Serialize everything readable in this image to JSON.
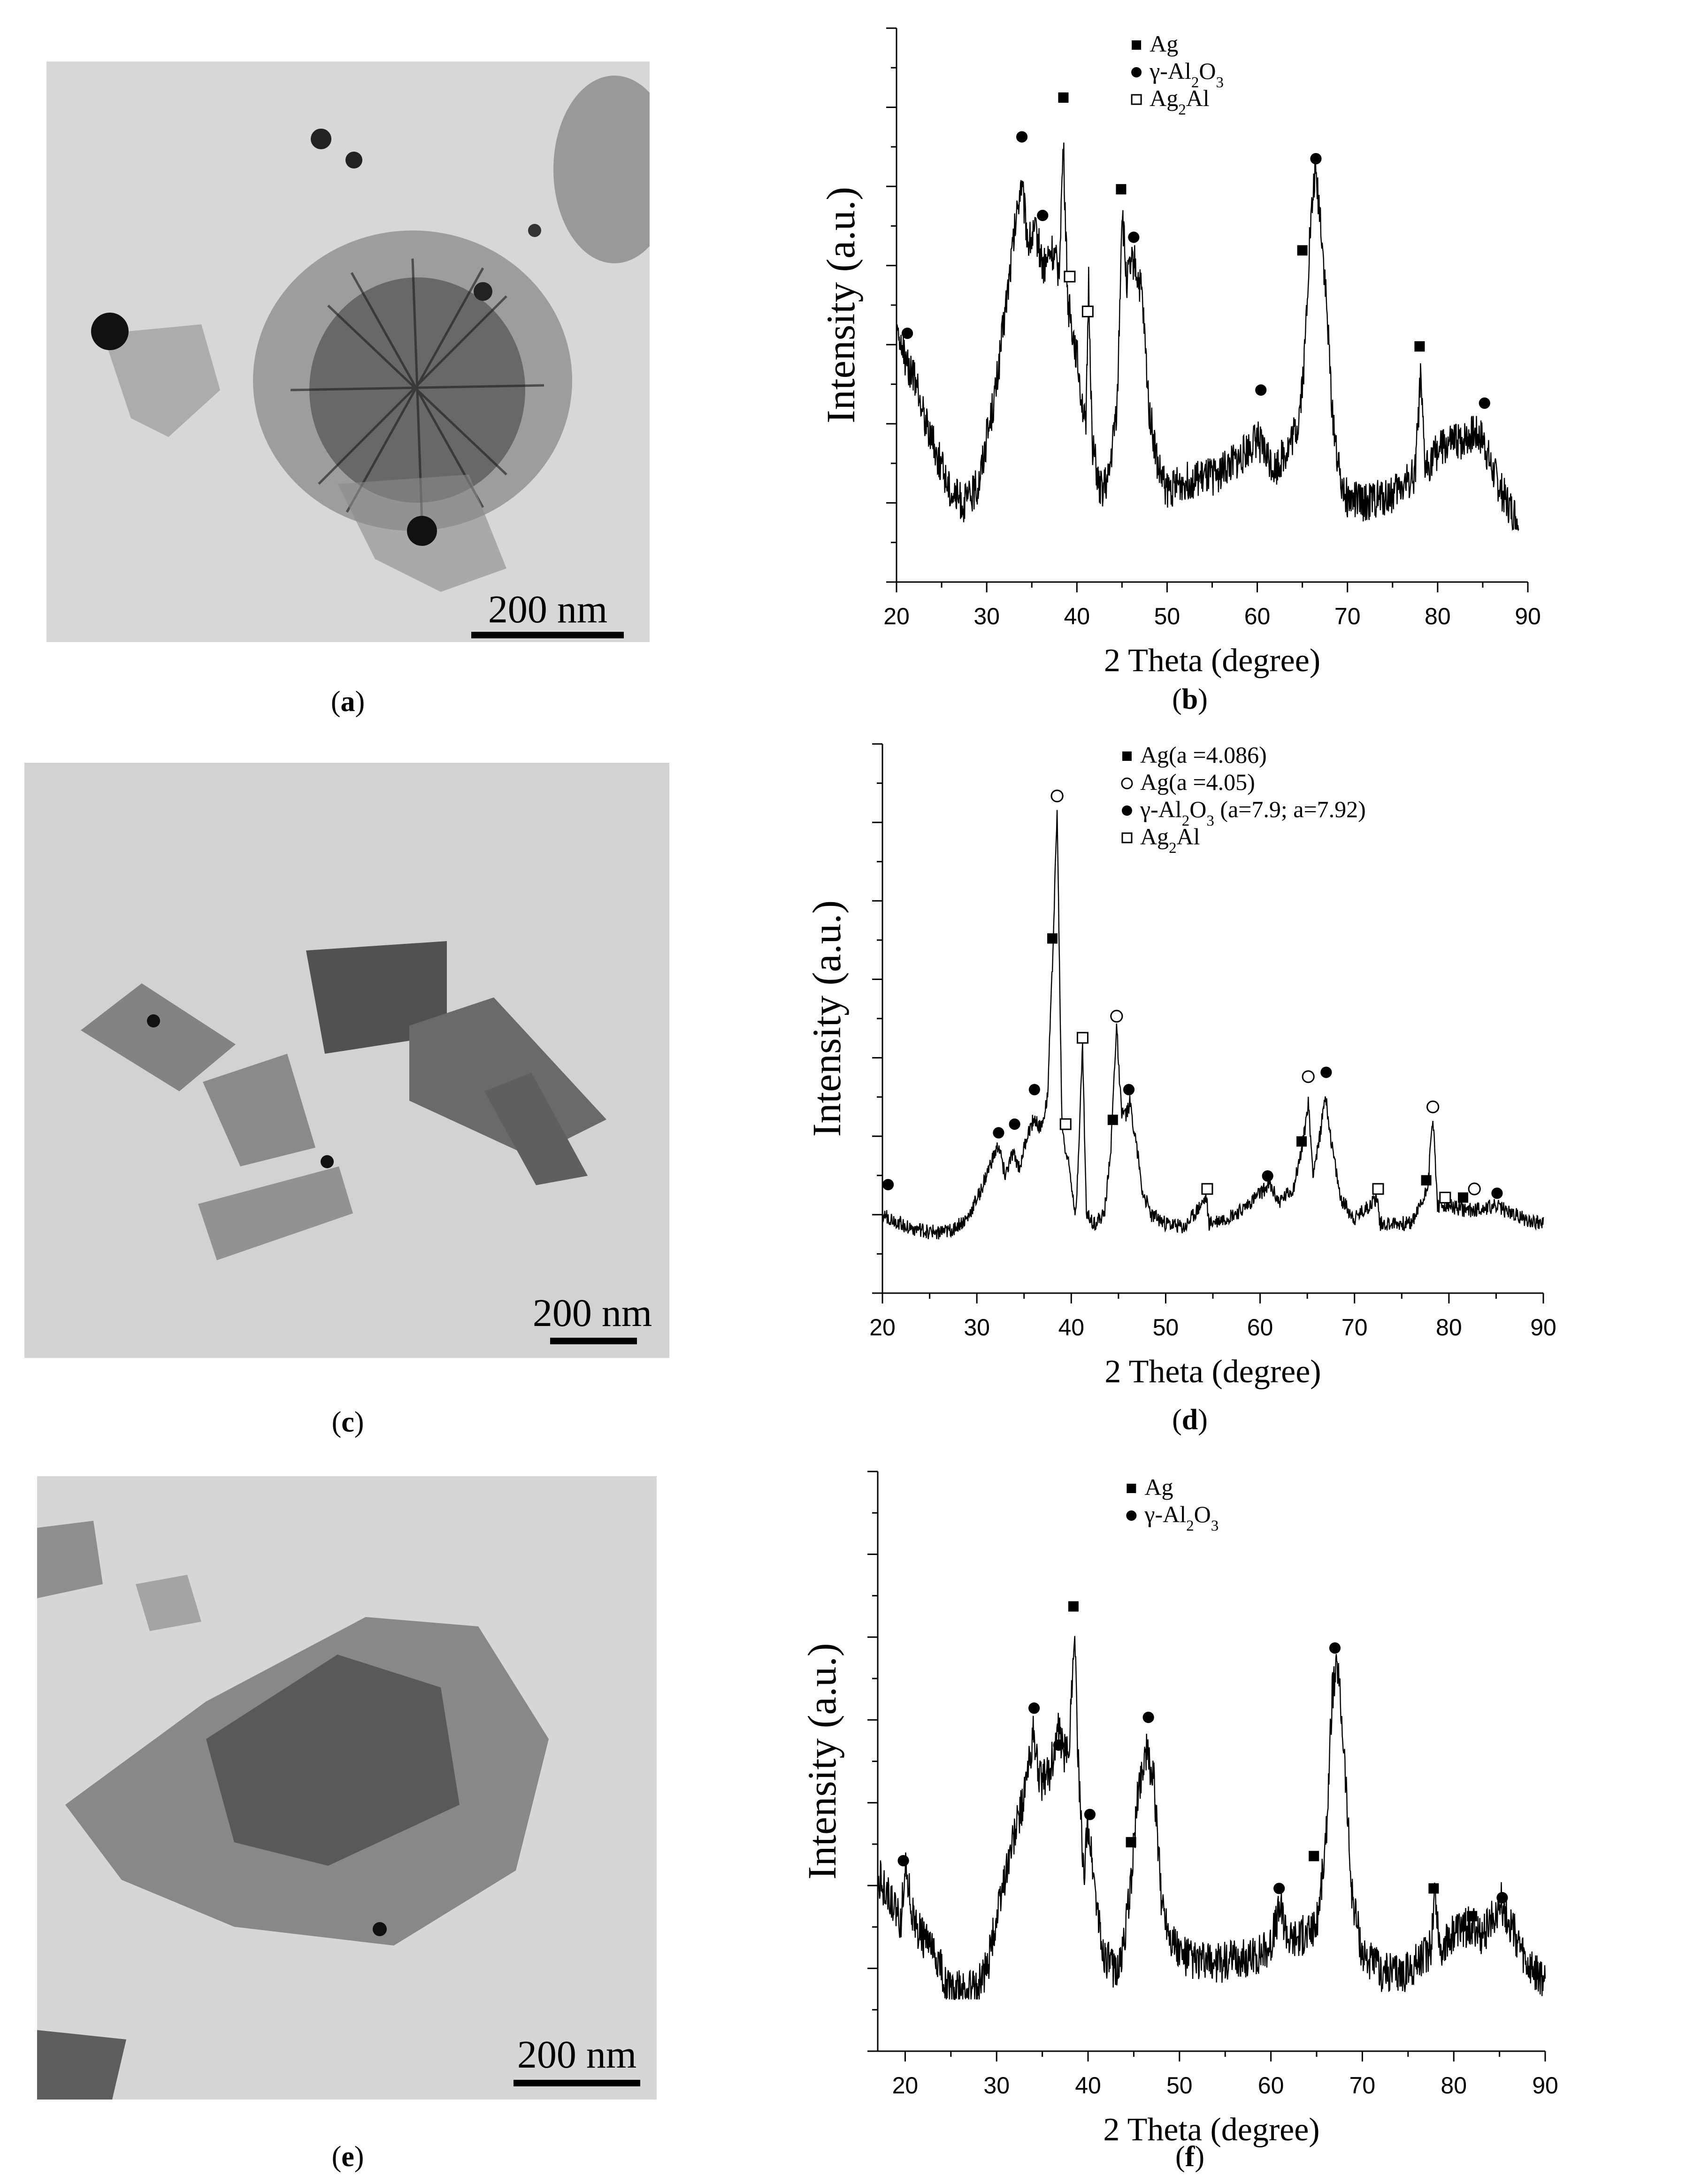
{
  "panels": {
    "a": {
      "label": "a",
      "scale_text": "200 nm"
    },
    "c": {
      "label": "c",
      "scale_text": "200 nm"
    },
    "e": {
      "label": "e",
      "scale_text": "200 nm"
    },
    "b": {
      "label": "b"
    },
    "d": {
      "label": "d"
    },
    "f": {
      "label": "f"
    }
  },
  "chart_data": [
    {
      "id": "b",
      "type": "line",
      "xlabel": "2 Theta (degree)",
      "ylabel": "Intensity (a.u.)",
      "xlim": [
        20,
        90
      ],
      "xticks": [
        20,
        30,
        40,
        50,
        60,
        70,
        80,
        90
      ],
      "ylim": [
        0,
        100
      ],
      "series": [
        {
          "x": [
            20,
            22,
            24,
            26,
            27.5,
            29,
            31,
            32.5,
            33.8,
            34.6,
            35.5,
            36.3,
            37.2,
            38,
            38.5,
            39,
            40,
            41,
            41.3,
            41.7,
            42.5,
            43.5,
            44.5,
            45,
            45.5,
            46.3,
            47.2,
            48,
            49,
            50,
            52,
            55,
            58,
            60,
            60.7,
            62,
            63.5,
            64.5,
            65.2,
            65.8,
            66.4,
            67,
            67.6,
            68.3,
            69,
            70,
            72,
            75,
            77.5,
            78.1,
            78.6,
            80,
            82,
            84,
            85,
            86,
            87.5,
            89
          ]
        }
      ],
      "y": [
        42,
        32,
        18,
        7,
        4,
        8,
        30,
        56,
        78,
        64,
        66,
        58,
        62,
        57,
        86,
        50,
        38,
        20,
        55,
        18,
        7,
        9,
        28,
        72,
        55,
        60,
        52,
        26,
        12,
        7,
        9,
        10,
        14,
        19,
        16,
        12,
        17,
        22,
        36,
        64,
        80,
        70,
        52,
        26,
        12,
        5,
        4,
        6,
        11,
        32,
        12,
        16,
        18,
        20,
        19,
        12,
        5,
        0
      ],
      "legend": [
        {
          "marker": "filled-square",
          "text": "Ag"
        },
        {
          "marker": "filled-circle",
          "text": "γ-Al₂O₃"
        },
        {
          "marker": "open-square",
          "text": "Ag₂Al"
        }
      ],
      "legend_position": "top-center",
      "peak_markers": [
        {
          "x": 21.2,
          "y": 43,
          "marker": "filled-circle"
        },
        {
          "x": 33.9,
          "y": 88,
          "marker": "filled-circle"
        },
        {
          "x": 36.2,
          "y": 70,
          "marker": "filled-circle"
        },
        {
          "x": 38.5,
          "y": 97,
          "marker": "filled-square"
        },
        {
          "x": 39.2,
          "y": 56,
          "marker": "open-square"
        },
        {
          "x": 41.2,
          "y": 48,
          "marker": "open-square"
        },
        {
          "x": 44.9,
          "y": 76,
          "marker": "filled-square"
        },
        {
          "x": 46.3,
          "y": 65,
          "marker": "filled-circle"
        },
        {
          "x": 60.4,
          "y": 30,
          "marker": "filled-circle"
        },
        {
          "x": 65.0,
          "y": 62,
          "marker": "filled-square"
        },
        {
          "x": 66.5,
          "y": 83,
          "marker": "filled-circle"
        },
        {
          "x": 78.0,
          "y": 40,
          "marker": "filled-square"
        },
        {
          "x": 85.2,
          "y": 27,
          "marker": "filled-circle"
        }
      ]
    },
    {
      "id": "d",
      "type": "line",
      "xlabel": "2 Theta (degree)",
      "ylabel": "Intensity (a.u.)",
      "xlim": [
        20,
        90
      ],
      "xticks": [
        20,
        30,
        40,
        50,
        60,
        70,
        80,
        90
      ],
      "ylim": [
        0,
        100
      ],
      "series": [
        {
          "x": [
            20,
            21,
            23,
            25,
            27,
            29,
            30.5,
            31.5,
            32.3,
            33,
            33.8,
            34.5,
            35.3,
            36,
            36.8,
            37.5,
            38,
            38.5,
            39,
            39.3,
            39.8,
            40.5,
            41.2,
            41.6,
            42.5,
            43.5,
            44.2,
            44.8,
            45.3,
            45.8,
            46.2,
            46.8,
            47.5,
            48.5,
            50,
            52,
            54.3,
            54.6,
            56,
            58,
            60,
            61,
            62,
            63.5,
            64.5,
            65.1,
            65.6,
            66.2,
            66.9,
            67.6,
            68.5,
            70,
            72.4,
            72.7,
            74,
            76,
            77.4,
            77.8,
            78.3,
            78.8,
            80,
            82,
            85,
            88,
            90
          ]
        }
      ],
      "y": [
        4,
        3,
        1,
        0,
        0,
        3,
        10,
        16,
        20,
        13,
        18,
        15,
        22,
        26,
        24,
        32,
        62,
        98,
        26,
        20,
        15,
        4,
        43,
        4,
        2,
        4,
        20,
        48,
        28,
        27,
        30,
        22,
        10,
        4,
        2,
        1,
        8,
        2,
        3,
        5,
        9,
        11,
        7,
        10,
        20,
        30,
        14,
        20,
        32,
        20,
        8,
        3,
        8,
        2,
        2,
        2,
        8,
        12,
        27,
        6,
        6,
        5,
        6,
        3,
        2
      ],
      "legend": [
        {
          "marker": "filled-square",
          "text": "Ag(a =4.086)"
        },
        {
          "marker": "open-circle",
          "text": "Ag(a =4.05)"
        },
        {
          "marker": "filled-circle",
          "text": "γ-Al₂O₃ (a=7.9; a=7.92)"
        },
        {
          "marker": "open-square",
          "text": "Ag₂Al"
        }
      ],
      "legend_position": "top-right",
      "peak_markers": [
        {
          "x": 20.6,
          "y": 11,
          "marker": "filled-circle"
        },
        {
          "x": 32.3,
          "y": 23,
          "marker": "filled-circle"
        },
        {
          "x": 34.0,
          "y": 25,
          "marker": "filled-circle"
        },
        {
          "x": 36.1,
          "y": 33,
          "marker": "filled-circle"
        },
        {
          "x": 38.0,
          "y": 68,
          "marker": "filled-square"
        },
        {
          "x": 38.5,
          "y": 101,
          "marker": "open-circle"
        },
        {
          "x": 39.4,
          "y": 25,
          "marker": "open-square"
        },
        {
          "x": 41.2,
          "y": 45,
          "marker": "open-square"
        },
        {
          "x": 44.4,
          "y": 26,
          "marker": "filled-square"
        },
        {
          "x": 44.8,
          "y": 50,
          "marker": "open-circle"
        },
        {
          "x": 46.1,
          "y": 33,
          "marker": "filled-circle"
        },
        {
          "x": 54.4,
          "y": 10,
          "marker": "open-square"
        },
        {
          "x": 60.8,
          "y": 13,
          "marker": "filled-circle"
        },
        {
          "x": 64.4,
          "y": 21,
          "marker": "filled-square"
        },
        {
          "x": 65.1,
          "y": 36,
          "marker": "open-circle"
        },
        {
          "x": 67.0,
          "y": 37,
          "marker": "filled-circle"
        },
        {
          "x": 72.5,
          "y": 10,
          "marker": "open-square"
        },
        {
          "x": 77.6,
          "y": 12,
          "marker": "filled-square"
        },
        {
          "x": 78.3,
          "y": 29,
          "marker": "open-circle"
        },
        {
          "x": 79.6,
          "y": 8,
          "marker": "open-square"
        },
        {
          "x": 81.5,
          "y": 8,
          "marker": "filled-square"
        },
        {
          "x": 82.7,
          "y": 10,
          "marker": "open-circle"
        },
        {
          "x": 85.1,
          "y": 9,
          "marker": "filled-circle"
        }
      ]
    },
    {
      "id": "f",
      "type": "line",
      "xlabel": "2 Theta (degree)",
      "ylabel": "Intensity (a.u.)",
      "xlim": [
        17,
        90
      ],
      "xticks": [
        20,
        30,
        40,
        50,
        60,
        70,
        80,
        90
      ],
      "ylim": [
        0,
        100
      ],
      "series": [
        {
          "x": [
            17,
            18.5,
            19.5,
            20,
            21,
            22.5,
            23.5,
            25,
            27.5,
            29,
            31,
            33,
            34,
            34.8,
            35.8,
            36.7,
            37.6,
            38,
            38.5,
            39,
            39.5,
            40,
            40.6,
            41.5,
            42.5,
            43.5,
            44.5,
            45.5,
            46.3,
            47.2,
            48,
            49,
            50,
            52,
            55,
            58,
            60,
            61,
            62,
            64,
            65,
            66,
            66.7,
            67.3,
            68,
            68.8,
            70,
            72,
            75,
            77.5,
            77.9,
            78.5,
            80,
            82,
            83,
            85.2,
            86.5,
            88,
            90
          ]
        }
      ],
      "y": [
        25,
        19,
        14,
        28,
        14,
        10,
        6,
        0,
        0,
        5,
        26,
        42,
        55,
        45,
        47,
        56,
        50,
        55,
        79,
        45,
        25,
        36,
        25,
        9,
        5,
        5,
        19,
        43,
        52,
        45,
        20,
        12,
        8,
        6,
        6,
        7,
        10,
        18,
        11,
        12,
        14,
        31,
        64,
        70,
        52,
        22,
        8,
        4,
        4,
        9,
        22,
        9,
        12,
        14,
        11,
        19,
        13,
        5,
        2
      ],
      "legend": [
        {
          "marker": "filled-square",
          "text": "Ag"
        },
        {
          "marker": "filled-circle",
          "text": "γ-Al₂O₃"
        }
      ],
      "legend_position": "top-center",
      "peak_markers": [
        {
          "x": 19.8,
          "y": 28,
          "marker": "filled-circle"
        },
        {
          "x": 34.1,
          "y": 61,
          "marker": "filled-circle"
        },
        {
          "x": 36.8,
          "y": 53,
          "marker": "filled-circle"
        },
        {
          "x": 38.4,
          "y": 83,
          "marker": "filled-square"
        },
        {
          "x": 40.2,
          "y": 38,
          "marker": "filled-circle"
        },
        {
          "x": 44.7,
          "y": 32,
          "marker": "filled-square"
        },
        {
          "x": 46.6,
          "y": 59,
          "marker": "filled-circle"
        },
        {
          "x": 60.9,
          "y": 22,
          "marker": "filled-circle"
        },
        {
          "x": 64.7,
          "y": 29,
          "marker": "filled-square"
        },
        {
          "x": 67.0,
          "y": 74,
          "marker": "filled-circle"
        },
        {
          "x": 77.8,
          "y": 22,
          "marker": "filled-square"
        },
        {
          "x": 82.0,
          "y": 16,
          "marker": "filled-square"
        },
        {
          "x": 85.3,
          "y": 20,
          "marker": "filled-circle"
        }
      ]
    }
  ]
}
